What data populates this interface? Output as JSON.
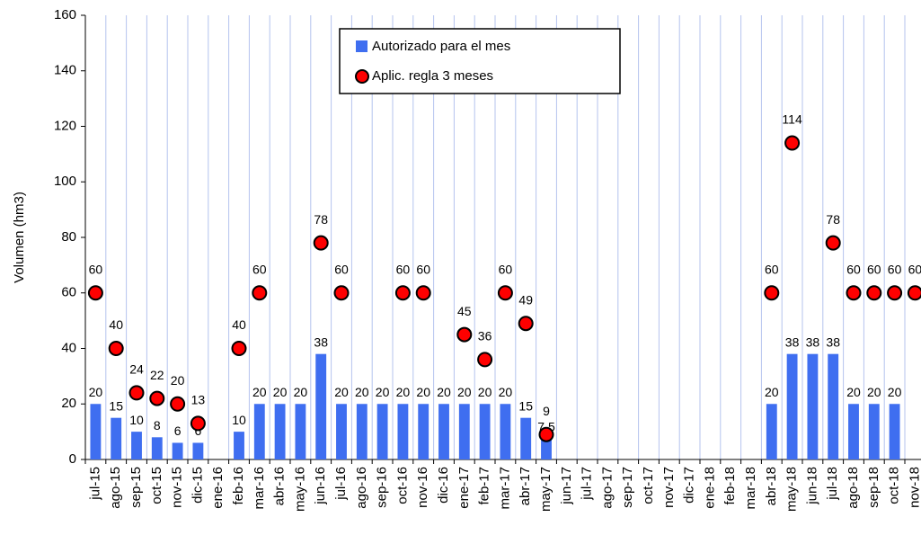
{
  "chart_data": {
    "type": "combo",
    "y_label": "Volumen (hm3)",
    "categories": [
      "jul-15",
      "ago-15",
      "sep-15",
      "oct-15",
      "nov-15",
      "dic-15",
      "ene-16",
      "feb-16",
      "mar-16",
      "abr-16",
      "may-16",
      "jun-16",
      "jul-16",
      "ago-16",
      "sep-16",
      "oct-16",
      "nov-16",
      "dic-16",
      "ene-17",
      "feb-17",
      "mar-17",
      "abr-17",
      "may-17",
      "jun-17",
      "jul-17",
      "ago-17",
      "sep-17",
      "oct-17",
      "nov-17",
      "dic-17",
      "ene-18",
      "feb-18",
      "mar-18",
      "abr-18",
      "may-18",
      "jun-18",
      "jul-18",
      "ago-18",
      "sep-18",
      "oct-18",
      "nov-18"
    ],
    "series": [
      {
        "name": "Autorizado para el mes",
        "type": "bar",
        "color": "#3f6ef0",
        "values": [
          20,
          15,
          10,
          8,
          6,
          6,
          null,
          10,
          20,
          20,
          20,
          38,
          20,
          20,
          20,
          20,
          20,
          20,
          20,
          20,
          20,
          15,
          7.5,
          null,
          null,
          null,
          null,
          null,
          null,
          null,
          null,
          null,
          null,
          20,
          38,
          38,
          38,
          20,
          20,
          20,
          null
        ]
      },
      {
        "name": "Aplic. regla 3 meses",
        "type": "scatter",
        "color": "#ff0000",
        "values": [
          60,
          40,
          24,
          22,
          20,
          13,
          null,
          40,
          60,
          null,
          null,
          78,
          60,
          null,
          null,
          60,
          60,
          null,
          45,
          36,
          60,
          49,
          9,
          null,
          null,
          null,
          null,
          null,
          null,
          null,
          null,
          null,
          null,
          60,
          114,
          null,
          78,
          60,
          60,
          60,
          60
        ]
      }
    ],
    "ylim": [
      0,
      160
    ],
    "yticks": [
      0,
      20,
      40,
      60,
      80,
      100,
      120,
      140,
      160
    ],
    "grid": true,
    "legend": "top"
  }
}
